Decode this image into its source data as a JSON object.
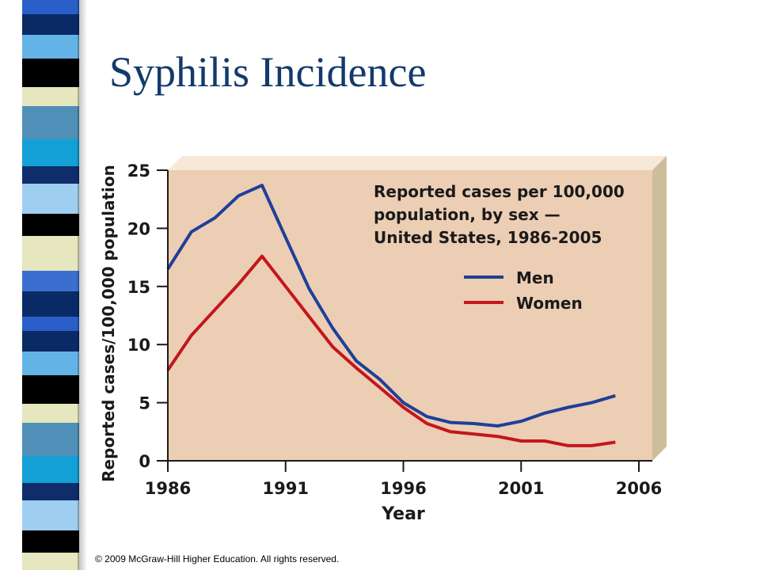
{
  "slide": {
    "title": "Syphilis Incidence",
    "copyright": "© 2009 McGraw-Hill Higher Education. All rights reserved."
  },
  "chart_data": {
    "type": "line",
    "title": "Reported cases per 100,000 population, by sex — United States, 1986-2005",
    "title_lines": [
      "Reported cases per 100,000",
      "population, by sex —",
      "United States, 1986-2005"
    ],
    "xlabel": "Year",
    "ylabel": "Reported cases/100,000 population",
    "x": [
      1986,
      1987,
      1988,
      1989,
      1990,
      1991,
      1992,
      1993,
      1994,
      1995,
      1996,
      1997,
      1998,
      1999,
      2000,
      2001,
      2002,
      2003,
      2004,
      2005
    ],
    "xlim": [
      1986,
      2006
    ],
    "ylim": [
      0,
      25
    ],
    "x_ticks": [
      1986,
      1991,
      1996,
      2001,
      2006
    ],
    "y_ticks": [
      0,
      5,
      10,
      15,
      20,
      25
    ],
    "grid": false,
    "legend_position": "top-right",
    "series": [
      {
        "name": "Men",
        "color": "#1f3f99",
        "values": [
          16.5,
          19.7,
          20.9,
          22.8,
          23.7,
          19.2,
          14.8,
          11.4,
          8.6,
          7.0,
          5.0,
          3.8,
          3.3,
          3.2,
          3.0,
          3.4,
          4.1,
          4.6,
          5.0,
          5.6
        ]
      },
      {
        "name": "Women",
        "color": "#c4161c",
        "values": [
          7.8,
          10.8,
          13.0,
          15.2,
          17.6,
          15.0,
          12.4,
          9.8,
          8.0,
          6.3,
          4.6,
          3.2,
          2.5,
          2.3,
          2.1,
          1.7,
          1.7,
          1.3,
          1.3,
          1.6
        ]
      }
    ]
  },
  "colors": {
    "plot_bg": "#ecceb4",
    "plot_side": "#ccbd9b",
    "plot_top": "#f7e8d8",
    "title_color": "#123a6b"
  }
}
